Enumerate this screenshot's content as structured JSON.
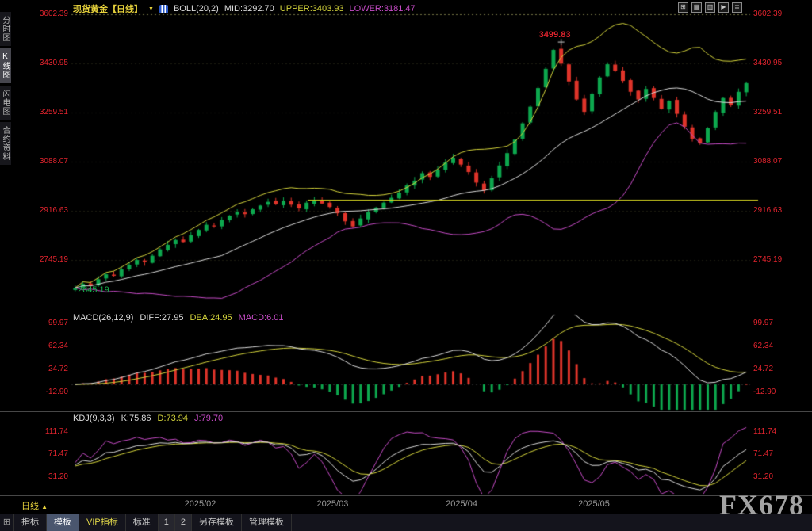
{
  "colors": {
    "background": "#000000",
    "axis_label_red": "#e3242e",
    "up_candle_green": "#0da84e",
    "down_candle_red": "#e0342a",
    "boll_mid_white": "#dcdcdc",
    "boll_upper_yellow": "#d6d63c",
    "boll_lower_magenta": "#c84cc8",
    "title_yellow": "#e8d33c",
    "date_gray": "#9a9a9a",
    "watermark_gray": "#a3a3a3"
  },
  "toolbar": {
    "symbol_title": "现货黄金【日线】",
    "dropdown_glyph": "▼",
    "boll_label": "BOLL(20,2)",
    "mid_label": "MID:3292.70",
    "upper_label": "UPPER:3403.93",
    "lower_label": "LOWER:3181.47",
    "window_icons": [
      "⊞",
      "▦",
      "▥",
      "▶",
      "≣"
    ]
  },
  "sidebar": {
    "items": [
      {
        "label": "分时图",
        "active": false
      },
      {
        "label": "K线图",
        "active": true
      },
      {
        "label": "闪电图",
        "active": false
      },
      {
        "label": "合约资料",
        "active": false
      }
    ]
  },
  "main_chart": {
    "axis_labels": [
      "3602.39",
      "3430.95",
      "3259.51",
      "3088.07",
      "2916.63",
      "2745.19"
    ],
    "high_annotation": "3499.83",
    "low_annotation": "2645.19"
  },
  "macd_panel": {
    "title": "MACD(26,12,9)",
    "diff_label": "DIFF:27.95",
    "dea_label": "DEA:24.95",
    "macd_label": "MACD:6.01",
    "axis_labels": [
      "99.97",
      "62.34",
      "24.72",
      "-12.90"
    ]
  },
  "kdj_panel": {
    "title": "KDJ(9,3,3)",
    "k_label": "K:75.86",
    "d_label": "D:73.94",
    "j_label": "J:79.70",
    "axis_labels": [
      "111.74",
      "71.47",
      "31.20"
    ]
  },
  "time_axis": {
    "period_label": "日线",
    "period_arrow": "▲",
    "dates": [
      "2025/02",
      "2025/03",
      "2025/04",
      "2025/05"
    ],
    "watermark": "FX678"
  },
  "bottom_bar": {
    "menu_icon": "⊞",
    "tabs": [
      {
        "label": "指标",
        "active": false,
        "vip": false,
        "num": false
      },
      {
        "label": "模板",
        "active": true,
        "vip": false,
        "num": false
      },
      {
        "label": "VIP指标",
        "active": false,
        "vip": true,
        "num": false
      },
      {
        "label": "标准",
        "active": false,
        "vip": false,
        "num": false
      },
      {
        "label": "1",
        "active": false,
        "vip": false,
        "num": true
      },
      {
        "label": "2",
        "active": false,
        "vip": false,
        "num": true
      },
      {
        "label": "另存模板",
        "active": false,
        "vip": false,
        "num": false
      },
      {
        "label": "管理模板",
        "active": false,
        "vip": false,
        "num": false
      }
    ]
  },
  "chart_data": {
    "type": "candlestick",
    "symbol": "现货黄金",
    "period": "日线",
    "price_axis_values": [
      3602.39,
      3430.95,
      3259.51,
      3088.07,
      2916.63,
      2745.19
    ],
    "high_annotation_value": 3499.83,
    "low_annotation_value": 2645.19,
    "yellow_hline_price": 2956,
    "date_ticks": [
      "2025/02",
      "2025/03",
      "2025/04",
      "2025/05"
    ],
    "closes": [
      2648,
      2662,
      2655,
      2678,
      2695,
      2690,
      2712,
      2728,
      2745,
      2738,
      2760,
      2782,
      2798,
      2815,
      2808,
      2832,
      2850,
      2868,
      2862,
      2885,
      2900,
      2912,
      2905,
      2922,
      2935,
      2948,
      2940,
      2952,
      2938,
      2925,
      2945,
      2955,
      2942,
      2930,
      2908,
      2880,
      2862,
      2890,
      2912,
      2928,
      2945,
      2962,
      2980,
      3005,
      3022,
      3048,
      3035,
      3060,
      3085,
      3102,
      3078,
      3052,
      3015,
      2988,
      3030,
      3075,
      3118,
      3165,
      3222,
      3280,
      3345,
      3412,
      3478,
      3430,
      3368,
      3305,
      3262,
      3325,
      3382,
      3428,
      3405,
      3370,
      3332,
      3305,
      3342,
      3310,
      3272,
      3300,
      3255,
      3210,
      3168,
      3152,
      3205,
      3262,
      3310,
      3285,
      3332,
      3362
    ],
    "indicators": {
      "boll": {
        "period": 20,
        "mult": 2,
        "mid": 3292.7,
        "upper": 3403.93,
        "lower": 3181.47
      },
      "macd": {
        "params": [
          26,
          12,
          9
        ],
        "diff": 27.95,
        "dea": 24.95,
        "macd": 6.01,
        "axis": [
          99.97,
          62.34,
          24.72,
          -12.9
        ]
      },
      "kdj": {
        "params": [
          9,
          3,
          3
        ],
        "k": 75.86,
        "d": 73.94,
        "j": 79.7,
        "axis": [
          111.74,
          71.47,
          31.2
        ]
      }
    }
  }
}
